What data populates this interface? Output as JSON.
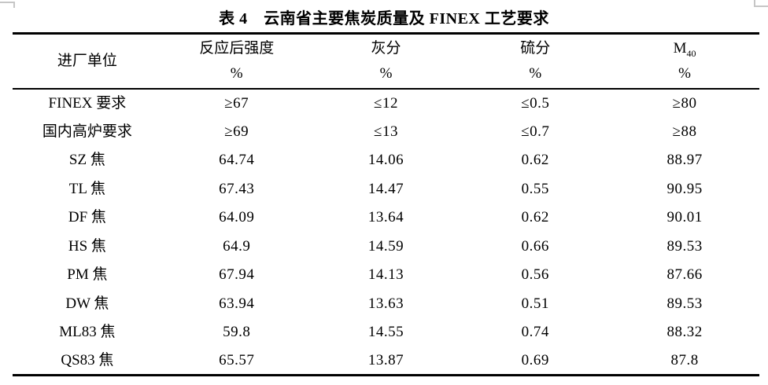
{
  "title": "表 4　云南省主要焦炭质量及 FINEX 工艺要求",
  "colors": {
    "background": "#ffffff",
    "text": "#000000",
    "rule": "#000000",
    "page_mark": "#c6c6c6"
  },
  "table": {
    "columns": [
      {
        "label": "进厂单位",
        "sublabel": "",
        "unit": ""
      },
      {
        "label": "反应后强度",
        "sublabel": "",
        "unit": "%"
      },
      {
        "label": "灰分",
        "sublabel": "",
        "unit": "%"
      },
      {
        "label": "硫分",
        "sublabel": "",
        "unit": "%"
      },
      {
        "label": "M",
        "sublabel": "40",
        "unit": "%"
      }
    ],
    "rows": [
      [
        "FINEX 要求",
        "≥67",
        "≤12",
        "≤0.5",
        "≥80"
      ],
      [
        "国内高炉要求",
        "≥69",
        "≤13",
        "≤0.7",
        "≥88"
      ],
      [
        "SZ 焦",
        "64.74",
        "14.06",
        "0.62",
        "88.97"
      ],
      [
        "TL 焦",
        "67.43",
        "14.47",
        "0.55",
        "90.95"
      ],
      [
        "DF 焦",
        "64.09",
        "13.64",
        "0.62",
        "90.01"
      ],
      [
        "HS 焦",
        "64.9",
        "14.59",
        "0.66",
        "89.53"
      ],
      [
        "PM 焦",
        "67.94",
        "14.13",
        "0.56",
        "87.66"
      ],
      [
        "DW 焦",
        "63.94",
        "13.63",
        "0.51",
        "89.53"
      ],
      [
        "ML83 焦",
        "59.8",
        "14.55",
        "0.74",
        "88.32"
      ],
      [
        "QS83 焦",
        "65.57",
        "13.87",
        "0.69",
        "87.8"
      ]
    ]
  }
}
